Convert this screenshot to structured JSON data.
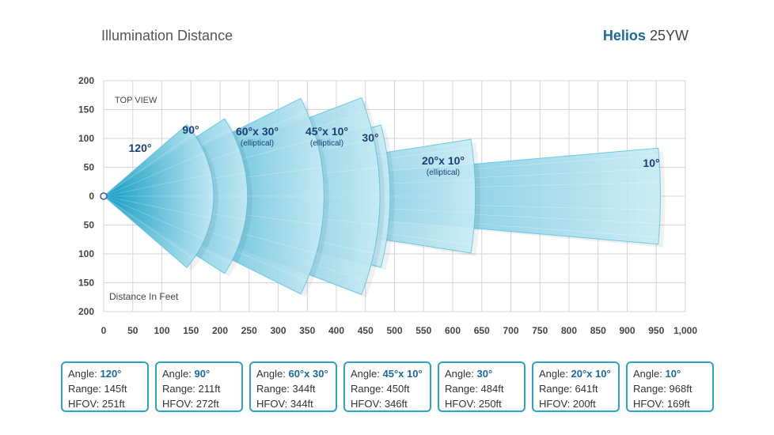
{
  "header": {
    "title": "Illumination Distance",
    "brand_bold": "Helios",
    "brand_rest": "25YW"
  },
  "colors": {
    "accent": "#1a6a9e",
    "beam_dark": "#0e9cc4",
    "beam_light": "#c9ecf6",
    "grid": "#d6d6d6",
    "card_border": "#2aa3c9"
  },
  "chart_data": {
    "type": "area",
    "title": "Illumination Distance",
    "xlabel": "Distance In Feet",
    "annotation": "TOP VIEW",
    "xlim": [
      0,
      1000
    ],
    "ylim": [
      -200,
      200
    ],
    "x_ticks": [
      "0",
      "50",
      "100",
      "150",
      "200",
      "250",
      "300",
      "350",
      "400",
      "450",
      "500",
      "550",
      "600",
      "650",
      "700",
      "750",
      "800",
      "850",
      "900",
      "950",
      "1,000"
    ],
    "y_ticks": [
      "200",
      "150",
      "100",
      "50",
      "0",
      "50",
      "100",
      "150",
      "200"
    ],
    "beams": [
      {
        "label": "120°",
        "sub": "",
        "range": 145,
        "hfov": 251
      },
      {
        "label": "90°",
        "sub": "",
        "range": 211,
        "hfov": 272
      },
      {
        "label": "60°x 30°",
        "sub": "(elliptical)",
        "range": 344,
        "hfov": 344
      },
      {
        "label": "45°x 10°",
        "sub": "(elliptical)",
        "range": 450,
        "hfov": 346
      },
      {
        "label": "30°",
        "sub": "",
        "range": 484,
        "hfov": 250
      },
      {
        "label": "20°x 10°",
        "sub": "(elliptical)",
        "range": 641,
        "hfov": 200
      },
      {
        "label": "10°",
        "sub": "",
        "range": 968,
        "hfov": 169
      }
    ]
  },
  "cards": [
    {
      "angle_label": "Angle:",
      "angle": "120°",
      "range_label": "Range:",
      "range": "145ft",
      "hfov_label": "HFOV:",
      "hfov": "251ft"
    },
    {
      "angle_label": "Angle:",
      "angle": "90°",
      "range_label": "Range:",
      "range": "211ft",
      "hfov_label": "HFOV:",
      "hfov": "272ft"
    },
    {
      "angle_label": "Angle:",
      "angle": "60°x 30°",
      "range_label": "Range:",
      "range": "344ft",
      "hfov_label": "HFOV:",
      "hfov": "344ft"
    },
    {
      "angle_label": "Angle:",
      "angle": "45°x 10°",
      "range_label": "Range:",
      "range": "450ft",
      "hfov_label": "HFOV:",
      "hfov": "346ft"
    },
    {
      "angle_label": "Angle:",
      "angle": "30°",
      "range_label": "Range:",
      "range": "484ft",
      "hfov_label": "HFOV:",
      "hfov": "250ft"
    },
    {
      "angle_label": "Angle:",
      "angle": "20°x 10°",
      "range_label": "Range:",
      "range": "641ft",
      "hfov_label": "HFOV:",
      "hfov": "200ft"
    },
    {
      "angle_label": "Angle:",
      "angle": "10°",
      "range_label": "Range:",
      "range": "968ft",
      "hfov_label": "HFOV:",
      "hfov": "169ft"
    }
  ]
}
